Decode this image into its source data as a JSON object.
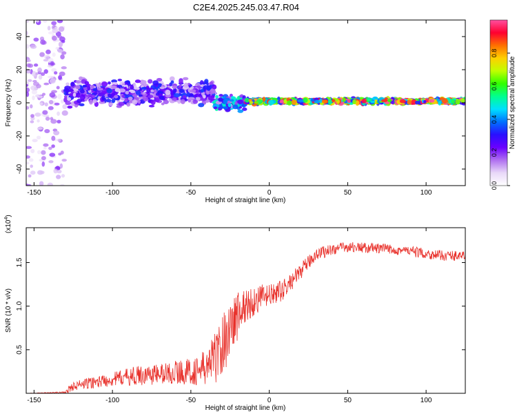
{
  "title": "C2E4.2025.245.03.47.R04",
  "colors": {
    "snr_line": "#e8302a",
    "frame": "#000000"
  },
  "chart_data": [
    {
      "type": "heatmap",
      "name": "spectrogram",
      "xlabel": "Height of straight line (km)",
      "ylabel": "Frequency (Hz)",
      "xlim": [
        -155,
        125
      ],
      "ylim": [
        -50,
        50
      ],
      "xticks": [
        -150,
        -100,
        -50,
        0,
        50,
        100
      ],
      "xtick_labels": [
        "-150",
        "-100",
        "-50",
        "0",
        "50",
        "100"
      ],
      "yticks": [
        40,
        20,
        0,
        -20,
        -40
      ],
      "ytick_labels": [
        "40",
        "20",
        "0",
        "-20",
        "-40"
      ],
      "colorbar": {
        "label": "Normalized spectral amplitude",
        "range": [
          0,
          1
        ],
        "ticks": [
          0.0,
          0.2,
          0.4,
          0.6,
          0.8
        ],
        "tick_labels": [
          "0.0",
          "0.2",
          "0.4",
          "0.6",
          "0.8"
        ],
        "colormap": [
          "#ffffff",
          "#e8d8f8",
          "#b070f0",
          "#6a00ff",
          "#2a10ff",
          "#0070ff",
          "#00e0ff",
          "#00ff90",
          "#30ff00",
          "#c0ff00",
          "#ffd000",
          "#ff7000",
          "#ff0030",
          "#ff50a0"
        ]
      },
      "regions": [
        {
          "x_range": [
            -155,
            -130
          ],
          "freq_center": 0,
          "freq_halfwidth": 50,
          "amplitude": 0.15,
          "description": "scattered"
        },
        {
          "x_range": [
            -130,
            -35
          ],
          "freq_center": 6,
          "freq_halfwidth": 10,
          "amplitude": 0.25
        },
        {
          "x_range": [
            -35,
            -15
          ],
          "freq_center": 0,
          "freq_halfwidth": 6,
          "amplitude": 0.4
        },
        {
          "x_range": [
            -15,
            125
          ],
          "freq_center": 1,
          "freq_halfwidth": 2,
          "amplitude": 0.75
        }
      ]
    },
    {
      "type": "line",
      "name": "snr",
      "xlabel": "Height of straight line (km)",
      "ylabel": "SNR (10 * v/v)",
      "multiplier_label": "(x10",
      "multiplier_exp": "4",
      "multiplier_close": ")",
      "xlim": [
        -155,
        125
      ],
      "ylim": [
        0,
        1.9
      ],
      "xticks": [
        -150,
        -100,
        -50,
        0,
        50,
        100
      ],
      "xtick_labels": [
        "-150",
        "-100",
        "-50",
        "0",
        "50",
        "100"
      ],
      "yticks": [
        0.5,
        1.0,
        1.5
      ],
      "ytick_labels": [
        "0.5",
        "1.0",
        "1.5"
      ],
      "series": [
        {
          "name": "SNR",
          "x": [
            -155,
            -130,
            -128,
            -125,
            -120,
            -110,
            -100,
            -90,
            -80,
            -70,
            -60,
            -50,
            -45,
            -40,
            -35,
            -30,
            -25,
            -20,
            -15,
            -10,
            -5,
            0,
            5,
            10,
            15,
            20,
            25,
            30,
            40,
            50,
            60,
            70,
            80,
            90,
            100,
            110,
            120,
            125
          ],
          "values": [
            0.0,
            0.01,
            0.04,
            0.08,
            0.1,
            0.13,
            0.16,
            0.19,
            0.21,
            0.22,
            0.24,
            0.25,
            0.26,
            0.3,
            0.4,
            0.55,
            0.75,
            0.9,
            1.0,
            1.05,
            1.1,
            1.12,
            1.15,
            1.2,
            1.3,
            1.4,
            1.5,
            1.6,
            1.65,
            1.68,
            1.67,
            1.66,
            1.65,
            1.63,
            1.6,
            1.58,
            1.58,
            1.57
          ],
          "noise": [
            0.0,
            0.01,
            0.04,
            0.05,
            0.06,
            0.07,
            0.08,
            0.1,
            0.12,
            0.12,
            0.14,
            0.15,
            0.18,
            0.22,
            0.3,
            0.35,
            0.35,
            0.3,
            0.2,
            0.18,
            0.15,
            0.13,
            0.12,
            0.12,
            0.1,
            0.09,
            0.08,
            0.07,
            0.07,
            0.06,
            0.06,
            0.06,
            0.06,
            0.06,
            0.06,
            0.06,
            0.06,
            0.06
          ]
        }
      ]
    }
  ]
}
